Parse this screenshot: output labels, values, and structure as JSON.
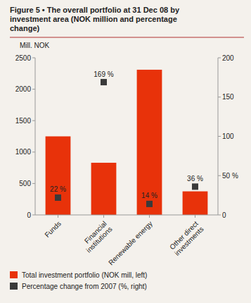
{
  "chart_data": {
    "type": "bar",
    "title": "Figure 5 • The overall portfolio at 31 Dec 08 by\ninvestment area (NOK million and percentage\nchange)",
    "ylabel": "Mill. NOK",
    "categories": [
      "Funds",
      "Financial\ninstitutions",
      "Renewable energy",
      "Other direct\ninvestments"
    ],
    "series": [
      {
        "name": "Total investment portfolio (NOK mill, left)",
        "type": "bar",
        "color": "#e8320a",
        "values": [
          1250,
          830,
          2310,
          375
        ]
      },
      {
        "name": "Percentage change from 2007 (%, right)",
        "type": "scatter",
        "marker": "square",
        "color": "#3a3a3a",
        "axis": "y2",
        "values": [
          22,
          169,
          14,
          36
        ],
        "value_labels": [
          "22 %",
          "169 %",
          "14 %",
          "36 %"
        ]
      }
    ],
    "data_labels": true,
    "ylim": [
      0,
      2500
    ],
    "yticks": [
      0,
      500,
      1000,
      1500,
      2000,
      2500
    ],
    "y2lim": [
      0,
      200
    ],
    "y2ticks": [
      0,
      {
        "value": 50,
        "label": "50 %"
      },
      100,
      150,
      200
    ],
    "legend": "bottom"
  }
}
